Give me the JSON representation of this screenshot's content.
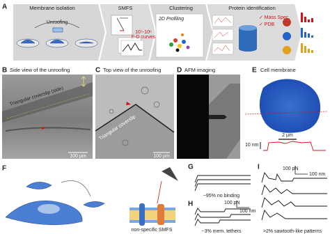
{
  "panels": {
    "a": {
      "label": "A",
      "membrane_isolation": "Membrane isolation",
      "unroofing": "Unroofing",
      "smfs": "SMFS",
      "curves_exponent": "10⁵-10⁶",
      "curves_unit": "F-D curves",
      "clustering": "Clustering",
      "profiling": "2D Profiling",
      "protein_identification": "Protein identification",
      "mass_spec": "✓ Mass Spec.",
      "pdb": "✓ PDB"
    },
    "b": {
      "label": "B",
      "title": "Side view of the unroofing",
      "coverslip": "Triangular coverslip (side)",
      "scale": "100 µm"
    },
    "c": {
      "label": "C",
      "title": "Top view of the unroofing",
      "coverslip": "Triangular coverslip",
      "scale": "100 µm"
    },
    "d": {
      "label": "D",
      "title": "AFM imaging"
    },
    "e": {
      "label": "E",
      "title": "Cell membrane",
      "scale_x": "2 µm",
      "scale_z": "10 nm"
    },
    "f": {
      "label": "F",
      "caption": "non-specific SMFS"
    },
    "g": {
      "label": "G",
      "caption": "~95% no binding"
    },
    "h": {
      "label": "H",
      "caption": "~3% mem. tethers",
      "force_scale": "100 pN",
      "distance_scale": "100 nm"
    },
    "i": {
      "label": "I",
      "caption": ">2% sawtooth-like patterns",
      "force_scale": "100 pN",
      "distance_scale": "100 nm"
    }
  }
}
